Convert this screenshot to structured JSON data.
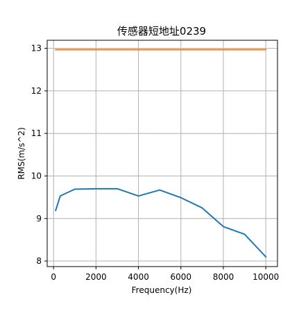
{
  "chart_data": {
    "type": "line",
    "title": "传感器短地址0239",
    "xlabel": "Frequency(Hz)",
    "ylabel": "RMS(m/s^2)",
    "xlim": [
      -300,
      10550
    ],
    "ylim": [
      7.87,
      13.19
    ],
    "xticks": [
      0,
      2000,
      4000,
      6000,
      8000,
      10000
    ],
    "yticks": [
      8,
      9,
      10,
      11,
      12,
      13
    ],
    "grid": true,
    "series": [
      {
        "color": "#1f77b4",
        "x": [
          100,
          315,
          1000,
          2000,
          3000,
          4000,
          5000,
          6000,
          7000,
          8000,
          9000,
          10000
        ],
        "y": [
          9.19,
          9.53,
          9.69,
          9.7,
          9.7,
          9.53,
          9.67,
          9.49,
          9.25,
          8.81,
          8.63,
          8.1
        ]
      },
      {
        "color": "#ff7f0e",
        "x": [
          100,
          315,
          1000,
          2000,
          3000,
          4000,
          5000,
          6000,
          7000,
          8000,
          9000,
          10000
        ],
        "y": [
          12.97,
          12.97,
          12.97,
          12.97,
          12.97,
          12.97,
          12.97,
          12.97,
          12.97,
          12.97,
          12.97,
          12.97
        ]
      }
    ]
  }
}
